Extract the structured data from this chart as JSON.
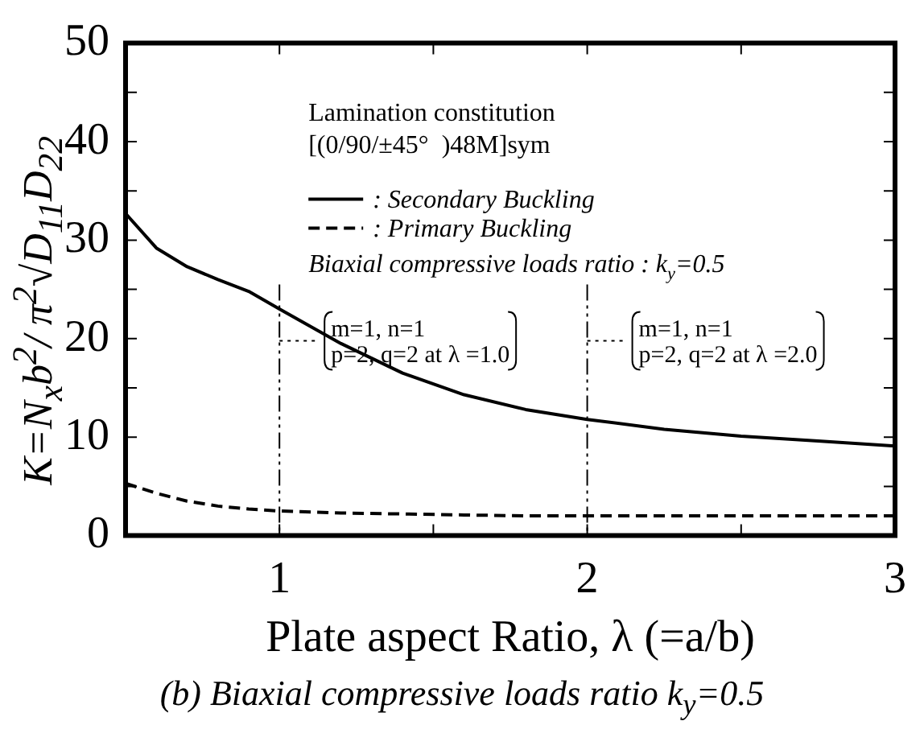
{
  "chart_data": {
    "type": "line",
    "title": "(b)  Biaxial compressive loads ratio k$_{y}$=0.5",
    "xlabel": "Plate aspect Ratio, λ (=a/b)",
    "ylabel": "K=N$_{x}$b$^{2}$/ π$^{2}$√D$_{11}$D$_{22}$",
    "x": [
      0.5,
      0.6,
      0.7,
      0.8,
      0.9,
      1.0,
      1.2,
      1.4,
      1.6,
      1.8,
      2.0,
      2.25,
      2.5,
      2.75,
      3.0
    ],
    "series": [
      {
        "name": ": Secondary Buckling",
        "color": "#000000",
        "line_style": "solid",
        "values": [
          32.7,
          29.2,
          27.3,
          26.0,
          24.8,
          23.0,
          19.5,
          16.5,
          14.3,
          12.8,
          11.8,
          10.8,
          10.1,
          9.6,
          9.1
        ]
      },
      {
        "name": ": Primary Buckling",
        "color": "#000000",
        "line_style": "dashed",
        "values": [
          5.3,
          4.3,
          3.5,
          3.0,
          2.7,
          2.5,
          2.3,
          2.2,
          2.1,
          2.0,
          2.0,
          2.0,
          2.0,
          2.0,
          2.0
        ]
      }
    ],
    "xlim": [
      0.5,
      3
    ],
    "xticks": [
      1,
      {
        "value": 1.5,
        "label": null
      },
      2,
      {
        "value": 2.5,
        "label": null
      },
      3
    ],
    "ylim": [
      0,
      50
    ],
    "yticks": [
      0,
      {
        "value": 5,
        "label": null
      },
      10,
      {
        "value": 15,
        "label": null
      },
      20,
      {
        "value": 25,
        "label": null
      },
      30,
      {
        "value": 35,
        "label": null
      },
      40,
      {
        "value": 45,
        "label": null
      },
      50
    ],
    "ref_lines": [
      {
        "axis": "x",
        "value": 1,
        "label": "m=1, n=1\np=2, q=2 at λ =1.0",
        "line_style": "dashdot"
      },
      {
        "axis": "x",
        "value": 2,
        "label": "m=1, n=1\np=2, q=2 at λ =2.0",
        "line_style": "dashdot"
      }
    ],
    "annotations": [
      "Lamination constitution",
      "[(0/90/±45°  )48M]sym",
      "Biaxial compressive loads ratio : k$_{y}$=0.5"
    ],
    "legend": "top",
    "grid": false,
    "marker": "none"
  }
}
